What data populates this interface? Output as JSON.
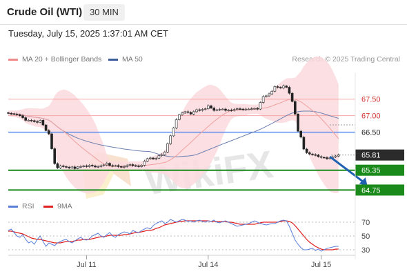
{
  "header": {
    "title": "Crude Oil (WTI)",
    "timeframe": "30 MIN",
    "datetime": "Tuesday, July 15, 2025 1:37:01 AM CET"
  },
  "legend": {
    "bollinger": {
      "label": "MA 20 + Bollinger Bands",
      "color": "#f08a8a"
    },
    "ma50": {
      "label": "MA 50",
      "color": "#3b5b9a"
    },
    "research": "Research © 2025 Trading Central",
    "rsi": {
      "label": "RSI",
      "color": "#5b7fd8"
    },
    "rsi_ma": {
      "label": "9MA",
      "color": "#e02020"
    }
  },
  "watermark": "WikiFX",
  "chart_data": [
    {
      "type": "candlestick",
      "ylim": [
        64.55,
        68.1
      ],
      "x_ticks": [
        {
          "label": "Jul 11",
          "index": 27
        },
        {
          "label": "Jul 14",
          "index": 69
        },
        {
          "label": "Jul 15",
          "index": 108
        }
      ],
      "close": [
        67.07,
        67.06,
        67.05,
        67.03,
        67.0,
        66.94,
        66.86,
        66.86,
        66.85,
        66.82,
        66.8,
        66.86,
        66.72,
        66.55,
        66.45,
        66.0,
        65.55,
        65.42,
        65.48,
        65.46,
        65.44,
        65.42,
        65.45,
        65.4,
        65.45,
        65.46,
        65.48,
        65.46,
        65.5,
        65.48,
        65.45,
        65.46,
        65.49,
        65.51,
        65.56,
        65.49,
        65.48,
        65.49,
        65.46,
        65.44,
        65.46,
        65.5,
        65.52,
        65.49,
        65.48,
        65.46,
        65.5,
        65.62,
        65.7,
        65.72,
        65.69,
        65.71,
        65.79,
        65.82,
        65.9,
        66.15,
        66.39,
        66.63,
        66.88,
        67.03,
        67.08,
        67.12,
        67.1,
        67.05,
        67.12,
        67.18,
        67.16,
        67.19,
        67.21,
        67.3,
        67.23,
        67.16,
        67.18,
        67.19,
        67.2,
        67.16,
        67.17,
        67.16,
        67.19,
        67.21,
        67.2,
        67.18,
        67.2,
        67.2,
        67.21,
        67.22,
        67.2,
        67.4,
        67.58,
        67.6,
        67.66,
        67.74,
        67.88,
        67.86,
        67.84,
        67.9,
        67.86,
        67.68,
        67.43,
        67.05,
        66.53,
        66.35,
        65.99,
        65.88,
        65.84,
        65.82,
        65.81,
        65.76,
        65.74,
        65.73,
        65.7,
        65.72,
        65.75,
        65.78,
        65.81
      ],
      "levels": [
        {
          "label": "67.50",
          "value": 67.5,
          "color": "#f6a6a6",
          "kind": "resistance"
        },
        {
          "label": "67.00",
          "value": 67.0,
          "color": "#f6a6a6",
          "kind": "resistance"
        },
        {
          "label": "66.50",
          "value": 66.5,
          "color": "#5b8def",
          "kind": "pivot"
        },
        {
          "label": "65.81",
          "value": 65.81,
          "color": "#333333",
          "kind": "last"
        },
        {
          "label": "65.35",
          "value": 65.35,
          "color": "#1a8a1a",
          "kind": "support"
        },
        {
          "label": "64.75",
          "value": 64.75,
          "color": "#1a8a1a",
          "kind": "support"
        }
      ],
      "arrow": {
        "from": {
          "index": 111,
          "value": 65.76
        },
        "to": {
          "index": 124,
          "value": 64.86
        }
      }
    },
    {
      "type": "line",
      "name": "RSI",
      "ylim": [
        20,
        80
      ],
      "y_ticks": [
        70,
        50,
        30
      ],
      "rsi": [
        58,
        60,
        55,
        50,
        48,
        52,
        45,
        40,
        42,
        38,
        45,
        50,
        42,
        35,
        40,
        38,
        36,
        40,
        42,
        44,
        45,
        42,
        40,
        43,
        46,
        48,
        45,
        44,
        46,
        50,
        52,
        54,
        50,
        48,
        52,
        55,
        50,
        48,
        52,
        54,
        56,
        55,
        53,
        58,
        56,
        55,
        58,
        60,
        62,
        60,
        65,
        68,
        70,
        72,
        68,
        70,
        74,
        72,
        70,
        72,
        74,
        73,
        71,
        72,
        70,
        72,
        73,
        71,
        70,
        72,
        71,
        73,
        70,
        69,
        71,
        72,
        70,
        68,
        66,
        64,
        65,
        66,
        67,
        68,
        70,
        72,
        70,
        68,
        67,
        66,
        67,
        68,
        68,
        70,
        72,
        73,
        72,
        64,
        54,
        44,
        38,
        33,
        30,
        30,
        31,
        32,
        29,
        31,
        28,
        30,
        32,
        33,
        34,
        35,
        35
      ],
      "rsi_ma": [
        57,
        57,
        56,
        55,
        54,
        53,
        51,
        49,
        47,
        46,
        45,
        45,
        44,
        43,
        42,
        41,
        40,
        40,
        40,
        41,
        42,
        42,
        42,
        43,
        44,
        44,
        45,
        45,
        45,
        46,
        47,
        48,
        49,
        49,
        50,
        51,
        51,
        51,
        51,
        51,
        52,
        52,
        53,
        54,
        55,
        55,
        56,
        57,
        58,
        58,
        59,
        61,
        62,
        64,
        66,
        67,
        68,
        69,
        70,
        71,
        71,
        72,
        72,
        72,
        72,
        72,
        72,
        72,
        72,
        72,
        71,
        71,
        71,
        71,
        71,
        71,
        70,
        70,
        69,
        68,
        67,
        67,
        67,
        67,
        67,
        67,
        68,
        69,
        70,
        70,
        70,
        70,
        70,
        70,
        71,
        72,
        72,
        71,
        69,
        65,
        60,
        55,
        50,
        45,
        41,
        38,
        35,
        33,
        31,
        30,
        30,
        30,
        30,
        31,
        31
      ]
    }
  ]
}
